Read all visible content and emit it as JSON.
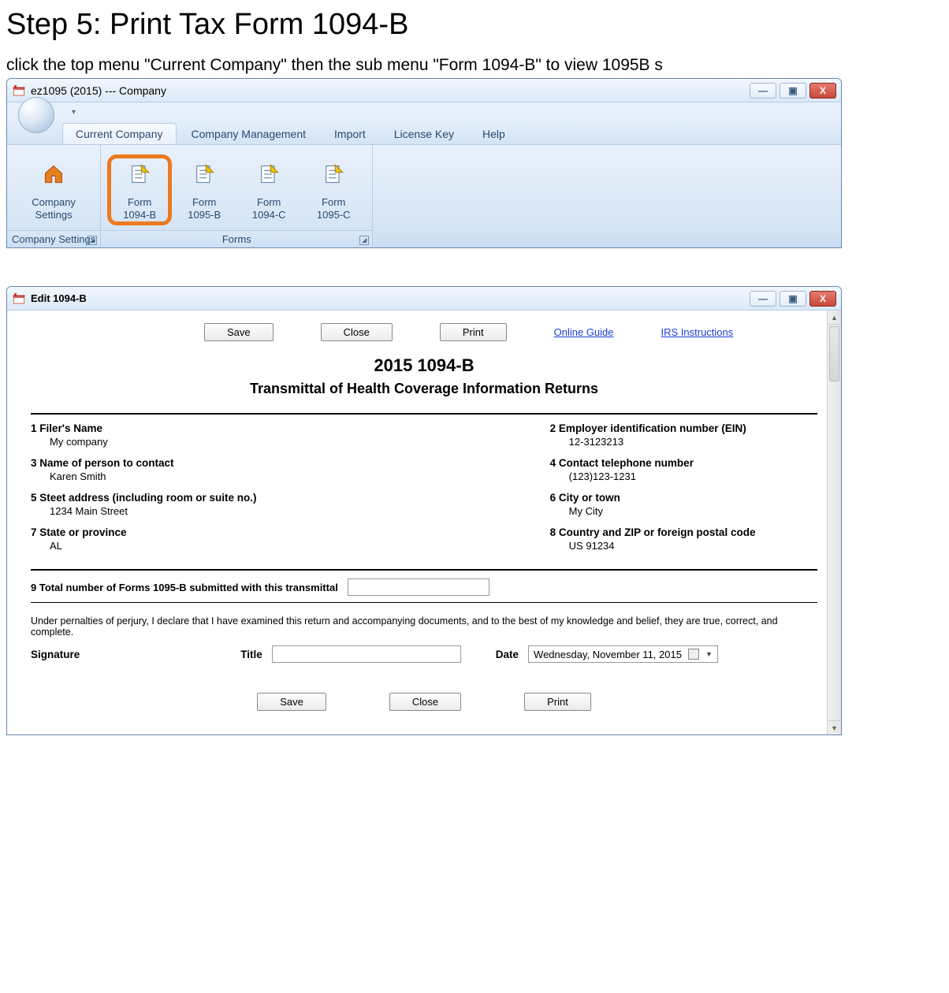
{
  "heading": "Step 5: Print Tax Form 1094-B",
  "instruction": "click the top menu \"Current Company\" then the sub menu \"Form 1094-B\" to view 1095B s",
  "colors": {
    "highlight_border": "#ec7a1f",
    "link": "#1a3fd6",
    "ribbon_text": "#2a4a70"
  },
  "win1": {
    "title": "ez1095 (2015) --- Company",
    "tabs": [
      "Current Company",
      "Company Management",
      "Import",
      "License Key",
      "Help"
    ],
    "active_tab_index": 0,
    "groups": [
      {
        "label": "Company Settings",
        "items": [
          {
            "line1": "Company",
            "line2": "Settings",
            "icon": "home"
          }
        ]
      },
      {
        "label": "Forms",
        "items": [
          {
            "line1": "Form",
            "line2": "1094-B",
            "icon": "form",
            "highlight": true
          },
          {
            "line1": "Form",
            "line2": "1095-B",
            "icon": "form"
          },
          {
            "line1": "Form",
            "line2": "1094-C",
            "icon": "form"
          },
          {
            "line1": "Form",
            "line2": "1095-C",
            "icon": "form"
          }
        ]
      }
    ]
  },
  "win2": {
    "title": "Edit 1094-B",
    "toolbar": {
      "save": "Save",
      "close": "Close",
      "print": "Print",
      "guide": "Online Guide",
      "irs": "IRS Instructions"
    },
    "form_title": "2015 1094-B",
    "form_subtitle": "Transmittal of Health Coverage Information Returns",
    "fields": {
      "f1": {
        "label": "1 Filer's Name",
        "value": "My company"
      },
      "f2": {
        "label": "2 Employer identification number (EIN)",
        "value": "12-3123213"
      },
      "f3": {
        "label": "3 Name of person to contact",
        "value": "Karen  Smith"
      },
      "f4": {
        "label": "4 Contact telephone number",
        "value": "(123)123-1231"
      },
      "f5": {
        "label": "5 Steet address (including room or suite no.)",
        "value": "1234 Main Street"
      },
      "f6": {
        "label": "6 City or town",
        "value": "My City"
      },
      "f7": {
        "label": "7 State or province",
        "value": "AL"
      },
      "f8": {
        "label": "8 Country and ZIP or foreign postal code",
        "value": "US 91234"
      },
      "f9": {
        "label": "9 Total number of Forms 1095-B submitted with this transmittal",
        "value": ""
      }
    },
    "perjury": "Under pernalties of perjury, I declare that I have examined this return and accompanying documents, and to the best of my knowledge and belief, they are true, correct, and complete.",
    "sig": {
      "signature_label": "Signature",
      "title_label": "Title",
      "date_label": "Date",
      "date_value": "Wednesday, November 11, 2015"
    },
    "bottom": {
      "save": "Save",
      "close": "Close",
      "print": "Print"
    }
  }
}
